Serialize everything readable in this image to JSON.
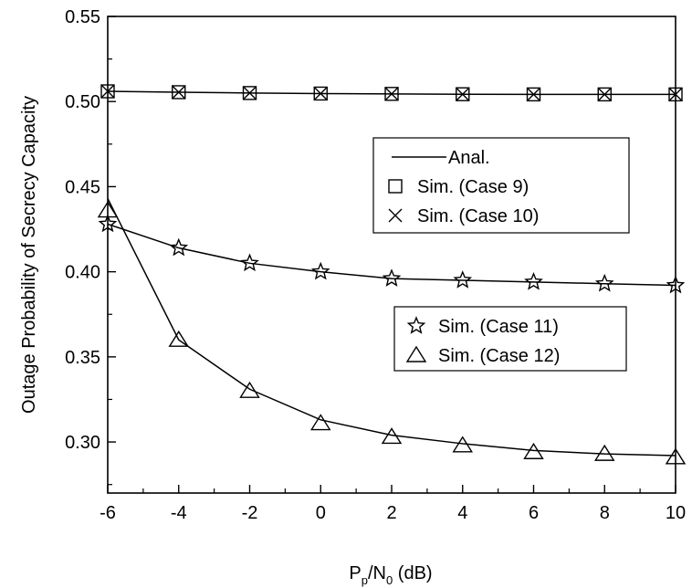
{
  "chart_data": {
    "type": "line",
    "xlabel": {
      "main": "P",
      "sub1": "p",
      "mid": "/N",
      "sub2": "0",
      "tail": " (dB)"
    },
    "ylabel": "Outage Probability of Secrecy Capacity",
    "xlim": [
      -6,
      10
    ],
    "ylim": [
      0.27,
      0.55
    ],
    "xticks": [
      -6,
      -4,
      -2,
      0,
      2,
      4,
      6,
      8,
      10
    ],
    "xtick_labels": [
      "-6",
      "-4",
      "-2",
      "0",
      "2",
      "4",
      "6",
      "8",
      "10"
    ],
    "yticks": [
      0.3,
      0.35,
      0.4,
      0.45,
      0.5,
      0.55
    ],
    "ytick_labels": [
      "0.30",
      "0.35",
      "0.40",
      "0.45",
      "0.50",
      "0.55"
    ],
    "grid": false,
    "x": [
      -6,
      -4,
      -2,
      0,
      2,
      4,
      6,
      8,
      10
    ],
    "series": [
      {
        "name": "Sim. (Case 9)",
        "marker": "square",
        "values": [
          0.506,
          0.5055,
          0.505,
          0.5047,
          0.5045,
          0.5043,
          0.5042,
          0.5042,
          0.5042
        ]
      },
      {
        "name": "Sim. (Case 10)",
        "marker": "cross",
        "values": [
          0.506,
          0.5055,
          0.505,
          0.5047,
          0.5045,
          0.5043,
          0.5042,
          0.5042,
          0.5042
        ]
      },
      {
        "name": "Sim. (Case 11)",
        "marker": "star",
        "values": [
          0.428,
          0.414,
          0.405,
          0.4,
          0.396,
          0.395,
          0.394,
          0.393,
          0.392
        ]
      },
      {
        "name": "Sim. (Case 12)",
        "marker": "triangle",
        "values": [
          0.436,
          0.36,
          0.33,
          0.311,
          0.303,
          0.298,
          0.294,
          0.293,
          0.291
        ]
      }
    ],
    "analytic": [
      {
        "values": [
          0.506,
          0.5055,
          0.505,
          0.5047,
          0.5045,
          0.5043,
          0.5042,
          0.5042,
          0.5042
        ]
      },
      {
        "values": [
          0.428,
          0.414,
          0.405,
          0.4,
          0.396,
          0.395,
          0.394,
          0.393,
          0.392
        ]
      },
      {
        "values": [
          0.443,
          0.36,
          0.331,
          0.313,
          0.304,
          0.299,
          0.295,
          0.293,
          0.292
        ]
      }
    ],
    "legends": [
      {
        "entries": [
          {
            "label": "Anal.",
            "marker": "line"
          },
          {
            "label": "Sim. (Case 9)",
            "marker": "square"
          },
          {
            "label": "Sim. (Case 10)",
            "marker": "cross"
          }
        ]
      },
      {
        "entries": [
          {
            "label": "Sim. (Case 11)",
            "marker": "star"
          },
          {
            "label": "Sim. (Case 12)",
            "marker": "triangle"
          }
        ]
      }
    ]
  }
}
